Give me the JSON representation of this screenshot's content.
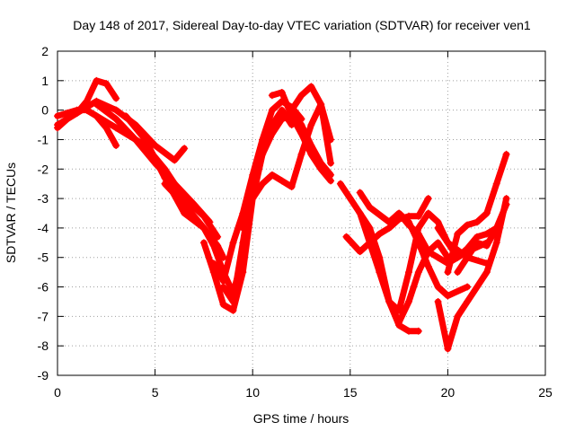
{
  "chart_data": {
    "type": "scatter",
    "title": "Day 148 of 2017, Sidereal Day-to-day VTEC variation (SDTVAR) for receiver ven1",
    "xlabel": "GPS time / hours",
    "ylabel": "SDTVAR / TECUs",
    "xlim": [
      0,
      25
    ],
    "ylim": [
      -9,
      2
    ],
    "xticks": [
      0,
      5,
      10,
      15,
      20,
      25
    ],
    "yticks": [
      -9,
      -8,
      -7,
      -6,
      -5,
      -4,
      -3,
      -2,
      -1,
      0,
      1,
      2
    ],
    "grid": true,
    "marker": "+",
    "color": "#ff0000",
    "series": [
      {
        "x": [
          0,
          0.5,
          1,
          1.5,
          2,
          2.5,
          3
        ],
        "y": [
          -0.6,
          -0.3,
          -0.1,
          0.3,
          1.0,
          0.9,
          0.4
        ]
      },
      {
        "x": [
          0,
          0.5,
          1,
          1.5,
          2,
          2.5,
          3
        ],
        "y": [
          -0.2,
          -0.1,
          0.0,
          0.0,
          -0.2,
          -0.6,
          -1.2
        ]
      },
      {
        "x": [
          0,
          1,
          2,
          3,
          4,
          5,
          6,
          6.5
        ],
        "y": [
          -0.5,
          -0.1,
          0.3,
          0.0,
          -0.5,
          -1.2,
          -1.7,
          -1.3
        ]
      },
      {
        "x": [
          2,
          3,
          4,
          5,
          6,
          7,
          7.8
        ],
        "y": [
          0.2,
          -0.3,
          -1.0,
          -1.8,
          -2.5,
          -3.2,
          -3.8
        ]
      },
      {
        "x": [
          1.5,
          3,
          4.5,
          5.5,
          6.5,
          7.5,
          8.2
        ],
        "y": [
          0.0,
          -0.6,
          -1.2,
          -2.0,
          -3.0,
          -3.6,
          -4.3
        ]
      },
      {
        "x": [
          3.5,
          4.5,
          5.5,
          6.5,
          7.5,
          8.2,
          8.5
        ],
        "y": [
          -0.2,
          -1.0,
          -2.3,
          -3.5,
          -4.0,
          -4.6,
          -5.0
        ]
      },
      {
        "x": [
          5.5,
          6.5,
          7.5,
          8,
          8.5,
          9,
          9.5
        ],
        "y": [
          -2.5,
          -3.2,
          -4.0,
          -4.6,
          -5.5,
          -6.2,
          -5.0
        ]
      },
      {
        "x": [
          7.5,
          8,
          8.5,
          9,
          9.5,
          10,
          10.5,
          11,
          11.5,
          12
        ],
        "y": [
          -4.5,
          -5.5,
          -6.6,
          -6.8,
          -5.5,
          -3.0,
          -1.5,
          -0.5,
          0.0,
          -0.5
        ]
      },
      {
        "x": [
          8.5,
          9,
          9.5,
          10,
          10.5,
          11,
          11.5,
          12,
          12.5,
          13,
          13.5,
          14
        ],
        "y": [
          -6.0,
          -6.5,
          -4.5,
          -2.5,
          -1.5,
          -0.8,
          -0.3,
          -0.2,
          -0.5,
          -1.2,
          -1.8,
          -2.2
        ]
      },
      {
        "x": [
          8,
          8.5,
          9,
          9.5,
          10,
          10.5,
          11,
          11.5,
          12,
          12.5
        ],
        "y": [
          -5.2,
          -5.8,
          -4.5,
          -3.5,
          -2.2,
          -1.0,
          0.0,
          0.3,
          0.1,
          -0.3
        ]
      },
      {
        "x": [
          9.5,
          10,
          10.5,
          11,
          11.5,
          12,
          12.5,
          13,
          13.5,
          14
        ],
        "y": [
          -4.0,
          -3.0,
          -2.5,
          -2.2,
          -2.4,
          -2.6,
          -1.5,
          -0.5,
          0.2,
          -1.8
        ]
      },
      {
        "x": [
          11,
          11.5,
          12,
          12.5,
          13,
          13.5,
          14
        ],
        "y": [
          0.5,
          0.6,
          -0.2,
          -0.8,
          -1.5,
          -2.0,
          -2.4
        ]
      },
      {
        "x": [
          12,
          12.5,
          13,
          13.5,
          14
        ],
        "y": [
          0.0,
          0.5,
          0.8,
          0.2,
          -1.0
        ]
      },
      {
        "x": [
          14.5,
          15,
          15.5,
          16,
          16.5,
          17,
          17.5,
          18,
          18.5
        ],
        "y": [
          -2.5,
          -3.0,
          -3.5,
          -4.0,
          -5.0,
          -6.5,
          -7.3,
          -7.5,
          -7.5
        ]
      },
      {
        "x": [
          15.5,
          16,
          16.5,
          17,
          17.5,
          18,
          18.5,
          19,
          19.5,
          20
        ],
        "y": [
          -3.5,
          -4.5,
          -5.5,
          -6.5,
          -7.2,
          -6.5,
          -5.5,
          -4.8,
          -4.5,
          -5.0
        ]
      },
      {
        "x": [
          14.8,
          15.5,
          16,
          16.5,
          17,
          17.5,
          18,
          18.5,
          19
        ],
        "y": [
          -4.3,
          -4.8,
          -4.5,
          -4.2,
          -4.0,
          -3.7,
          -3.6,
          -3.6,
          -3.0
        ]
      },
      {
        "x": [
          15.5,
          16,
          17,
          17.5,
          18,
          18.5,
          19,
          19.5,
          20,
          21
        ],
        "y": [
          -2.8,
          -3.3,
          -3.8,
          -3.5,
          -3.8,
          -4.5,
          -5.3,
          -6.0,
          -6.3,
          -6.0
        ]
      },
      {
        "x": [
          16.5,
          17,
          17.5,
          18,
          18.5,
          19,
          19.5,
          20,
          21,
          22
        ],
        "y": [
          -5.5,
          -6.5,
          -6.8,
          -5.5,
          -4.0,
          -3.5,
          -3.8,
          -4.5,
          -5.0,
          -5.2
        ]
      },
      {
        "x": [
          17,
          17.5,
          18,
          18.5,
          19,
          19.5,
          20,
          21,
          22
        ],
        "y": [
          -3.8,
          -3.5,
          -3.9,
          -4.2,
          -4.8,
          -5.0,
          -5.2,
          -4.8,
          -4.5
        ]
      },
      {
        "x": [
          19.5,
          20,
          20.5,
          21,
          21.5,
          22,
          22.5,
          23
        ],
        "y": [
          -6.5,
          -8.1,
          -7.0,
          -6.5,
          -6.0,
          -5.5,
          -4.5,
          -3.0
        ]
      },
      {
        "x": [
          20,
          20.5,
          21,
          21.5,
          22,
          22.5,
          23
        ],
        "y": [
          -5.5,
          -4.2,
          -3.9,
          -3.8,
          -3.5,
          -2.5,
          -1.5
        ]
      },
      {
        "x": [
          19.5,
          20,
          20.5,
          21,
          21.5,
          22,
          22.5
        ],
        "y": [
          -4.0,
          -4.5,
          -5.0,
          -4.7,
          -4.3,
          -4.2,
          -4.0
        ]
      },
      {
        "x": [
          20.5,
          21,
          21.5,
          22,
          22.5,
          23
        ],
        "y": [
          -5.5,
          -5.0,
          -4.5,
          -4.6,
          -4.0,
          -3.2
        ]
      }
    ]
  }
}
